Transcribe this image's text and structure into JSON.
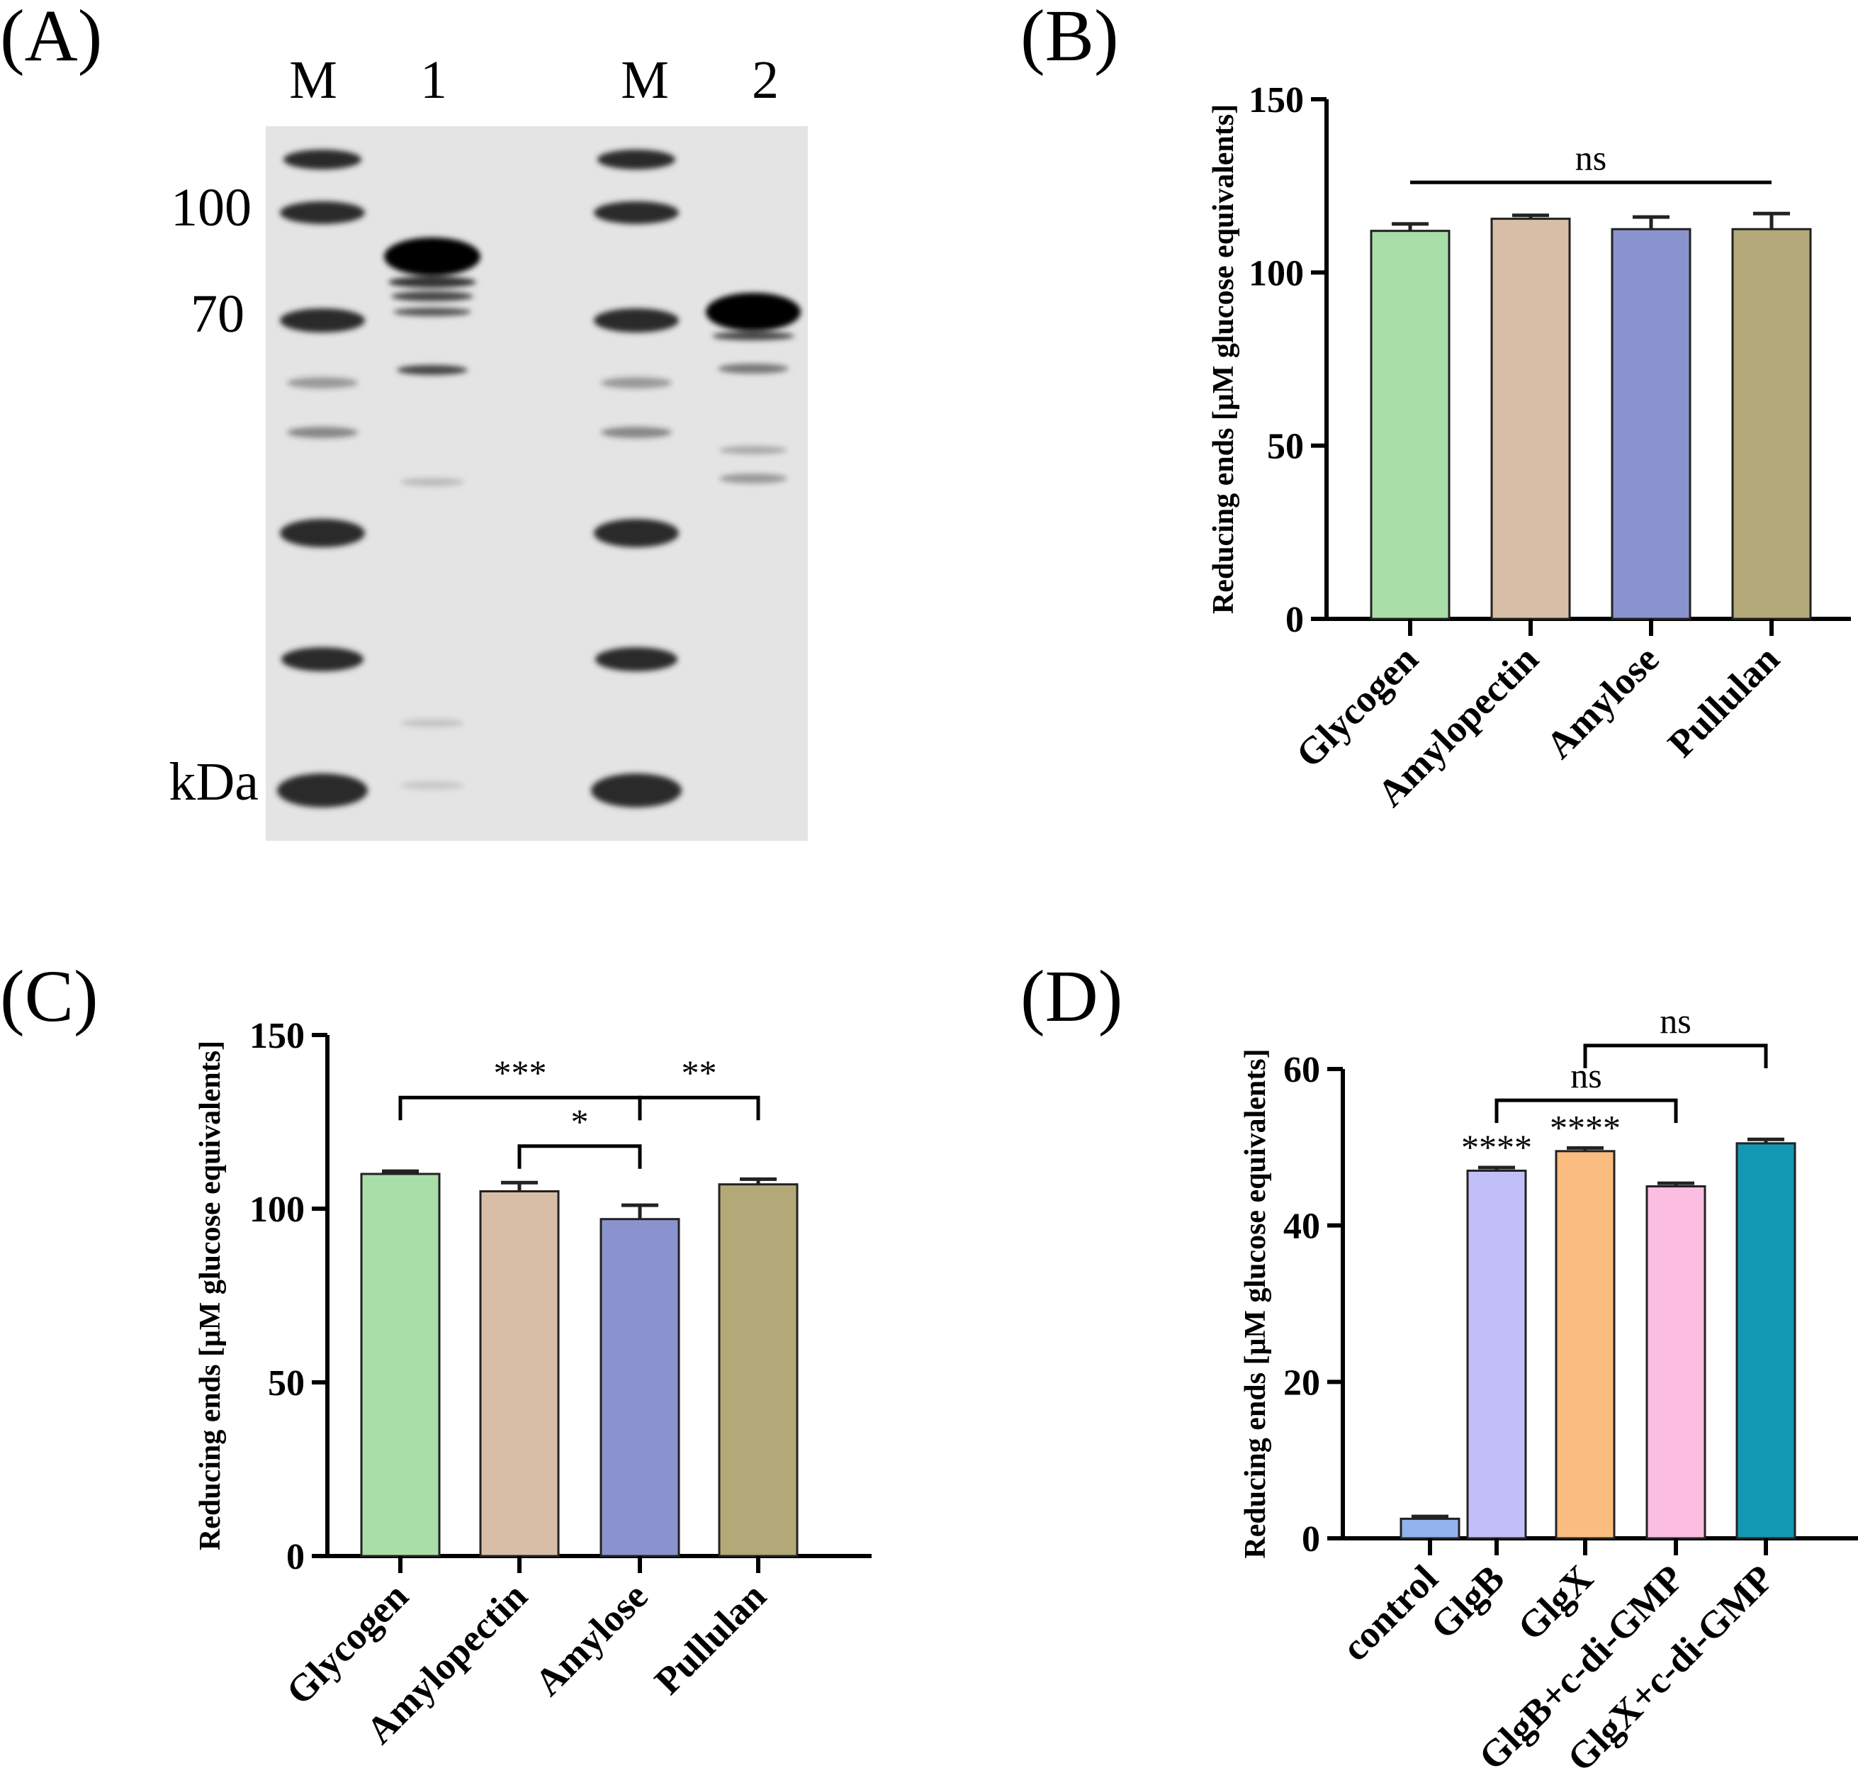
{
  "panels": [
    {
      "id": "A",
      "label": "(A)"
    },
    {
      "id": "B",
      "label": "(B)"
    },
    {
      "id": "C",
      "label": "(C)"
    },
    {
      "id": "D",
      "label": "(D)"
    }
  ],
  "gel": {
    "lane_labels": [
      "M",
      "1",
      "M",
      "2"
    ],
    "marker_labels": [
      "100",
      "70",
      "kDa"
    ]
  },
  "chart_data": [
    {
      "panel": "B",
      "type": "bar",
      "categories": [
        "Glycogen",
        "Amylopectin",
        "Amylose",
        "Pullulan"
      ],
      "values": [
        112,
        115.5,
        112.5,
        112.5
      ],
      "errors": [
        2,
        1,
        3.5,
        4.5
      ],
      "colors": [
        "#a9dea9",
        "#d9bea7",
        "#8b93cf",
        "#b3a978"
      ],
      "ylabel": "Reducing ends [μM glucose equivalents]",
      "ylim": [
        0,
        150
      ],
      "yticks": [
        0,
        50,
        100,
        150
      ],
      "annotations": [
        {
          "from": 0,
          "to": 3,
          "text": "ns",
          "y": 126
        }
      ]
    },
    {
      "panel": "C",
      "type": "bar",
      "categories": [
        "Glycogen",
        "Amylopectin",
        "Amylose",
        "Pullulan"
      ],
      "values": [
        110,
        105,
        97,
        107
      ],
      "errors": [
        0.8,
        2.5,
        4,
        1.5
      ],
      "colors": [
        "#a9dea9",
        "#d9bea7",
        "#8b93cf",
        "#b3a978"
      ],
      "ylabel": "Reducing ends [μM glucose equivalents]",
      "ylim": [
        0,
        150
      ],
      "yticks": [
        0,
        50,
        100,
        150
      ],
      "annotations": [
        {
          "from": 0,
          "to": 2,
          "text": "***",
          "y": 132
        },
        {
          "from": 1,
          "to": 2,
          "text": "*",
          "y": 118
        },
        {
          "from": 2,
          "to": 3,
          "text": "**",
          "y": 132
        }
      ]
    },
    {
      "panel": "D",
      "type": "bar",
      "categories": [
        "control",
        "GlgB",
        "GlgX",
        "GlgB+c-di-GMP",
        "GlgX+c-di-GMP"
      ],
      "values": [
        2.5,
        47,
        49.5,
        45,
        50.5
      ],
      "errors": [
        0.3,
        0.4,
        0.4,
        0.4,
        0.5
      ],
      "colors": [
        "#92b3ec",
        "#c2bff8",
        "#fbbd7f",
        "#fbbde0",
        "#1398b3"
      ],
      "ylabel": "Reducing ends [μM glucose equivalents]",
      "ylim": [
        0,
        60
      ],
      "yticks": [
        0,
        20,
        40,
        60
      ],
      "bar_labels": [
        "",
        "****",
        "****",
        "",
        ""
      ],
      "annotations": [
        {
          "from": 1,
          "to": 3,
          "text": "ns",
          "y": 56
        },
        {
          "from": 2,
          "to": 4,
          "text": "ns",
          "y": 63
        }
      ]
    }
  ]
}
